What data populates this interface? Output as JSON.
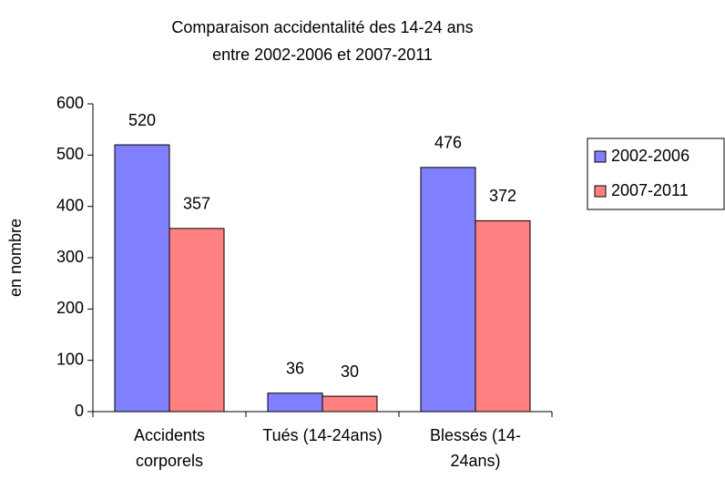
{
  "chart_data": {
    "type": "bar",
    "title": "Comparaison accidentalité des 14-24 ans",
    "subtitle": "entre 2002-2006 et 2007-2011",
    "y_label": "en nombre",
    "categories": [
      "Accidents corporels",
      "Tués (14-24ans)",
      "Blessés (14-24ans)"
    ],
    "series": [
      {
        "name": "2002-2006",
        "color": "#8080ff",
        "values": [
          520,
          36,
          476
        ]
      },
      {
        "name": "2007-2011",
        "color": "#ff8080",
        "values": [
          357,
          30,
          372
        ]
      }
    ],
    "ylim": [
      0,
      600
    ],
    "yticks": [
      0,
      100,
      200,
      300,
      400,
      500,
      600
    ],
    "legend": "right"
  }
}
